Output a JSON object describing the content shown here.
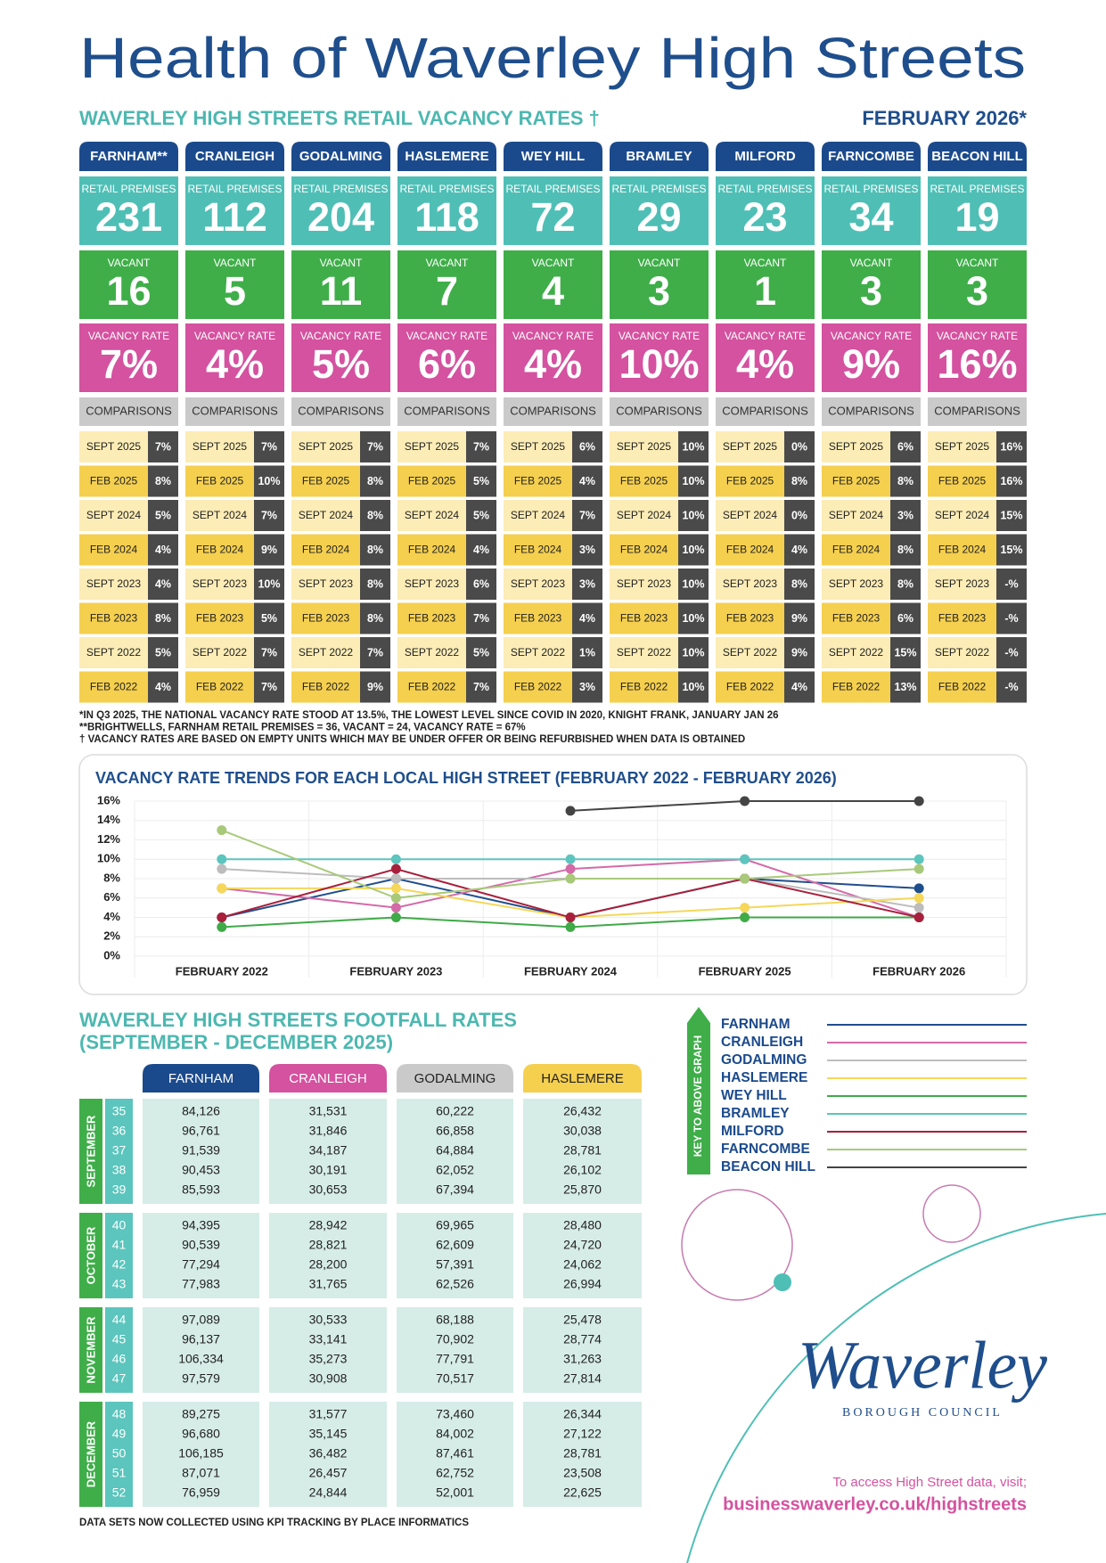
{
  "header": {
    "title": "Health of Waverley High Streets",
    "subtitle": "WAVERLEY HIGH STREETS RETAIL VACANCY RATES †",
    "date": "FEBRUARY 2026*"
  },
  "vacancy": {
    "labels": {
      "retail_premises": "RETAIL PREMISES",
      "vacant": "VACANT",
      "vacancy_rate": "VACANCY RATE",
      "comparisons": "COMPARISONS"
    },
    "periods": [
      "SEPT 2025",
      "FEB 2025",
      "SEPT 2024",
      "FEB 2024",
      "SEPT 2023",
      "FEB 2023",
      "SEPT 2022",
      "FEB 2022"
    ],
    "towns": [
      {
        "name": "FARNHAM**",
        "retail_premises": 231,
        "vacant": 16,
        "vacancy_rate": "7%",
        "comparisons": [
          "7%",
          "8%",
          "5%",
          "4%",
          "4%",
          "8%",
          "5%",
          "4%"
        ]
      },
      {
        "name": "CRANLEIGH",
        "retail_premises": 112,
        "vacant": 5,
        "vacancy_rate": "4%",
        "comparisons": [
          "7%",
          "10%",
          "7%",
          "9%",
          "10%",
          "5%",
          "7%",
          "7%"
        ]
      },
      {
        "name": "GODALMING",
        "retail_premises": 204,
        "vacant": 11,
        "vacancy_rate": "5%",
        "comparisons": [
          "7%",
          "8%",
          "8%",
          "8%",
          "8%",
          "8%",
          "7%",
          "9%"
        ]
      },
      {
        "name": "HASLEMERE",
        "retail_premises": 118,
        "vacant": 7,
        "vacancy_rate": "6%",
        "comparisons": [
          "7%",
          "5%",
          "5%",
          "4%",
          "6%",
          "7%",
          "5%",
          "7%"
        ]
      },
      {
        "name": "WEY HILL",
        "retail_premises": 72,
        "vacant": 4,
        "vacancy_rate": "4%",
        "comparisons": [
          "6%",
          "4%",
          "7%",
          "3%",
          "3%",
          "4%",
          "1%",
          "3%"
        ]
      },
      {
        "name": "BRAMLEY",
        "retail_premises": 29,
        "vacant": 3,
        "vacancy_rate": "10%",
        "comparisons": [
          "10%",
          "10%",
          "10%",
          "10%",
          "10%",
          "10%",
          "10%",
          "10%"
        ]
      },
      {
        "name": "MILFORD",
        "retail_premises": 23,
        "vacant": 1,
        "vacancy_rate": "4%",
        "comparisons": [
          "0%",
          "8%",
          "0%",
          "4%",
          "8%",
          "9%",
          "9%",
          "4%"
        ]
      },
      {
        "name": "FARNCOMBE",
        "retail_premises": 34,
        "vacant": 3,
        "vacancy_rate": "9%",
        "comparisons": [
          "6%",
          "8%",
          "3%",
          "8%",
          "8%",
          "6%",
          "15%",
          "13%"
        ]
      },
      {
        "name": "BEACON HILL",
        "retail_premises": 19,
        "vacant": 3,
        "vacancy_rate": "16%",
        "comparisons": [
          "16%",
          "16%",
          "15%",
          "15%",
          "-%",
          "-%",
          "-%",
          "-%"
        ]
      }
    ],
    "footnotes": [
      "*IN Q3 2025, THE NATIONAL VACANCY RATE STOOD AT 13.5%, THE LOWEST LEVEL SINCE COVID IN 2020, KNIGHT FRANK, JANUARY JAN 26",
      "**BRIGHTWELLS, FARNHAM RETAIL PREMISES = 36, VACANT = 24, VACANCY RATE  = 67%",
      "† VACANCY RATES ARE BASED ON EMPTY UNITS WHICH MAY BE UNDER OFFER OR BEING REFURBISHED WHEN DATA IS OBTAINED"
    ]
  },
  "chart_data": {
    "type": "line",
    "title": "VACANCY RATE TRENDS FOR EACH LOCAL HIGH STREET (FEBRUARY 2022 - FEBRUARY 2026)",
    "categories": [
      "FEBRUARY 2022",
      "FEBRUARY 2023",
      "FEBRUARY 2024",
      "FEBRUARY 2025",
      "FEBRUARY 2026"
    ],
    "ylim": [
      0,
      16
    ],
    "yticks": [
      {
        "value": 0,
        "label": "0%"
      },
      {
        "value": 2,
        "label": "2%"
      },
      {
        "value": 4,
        "label": "4%"
      },
      {
        "value": 6,
        "label": "6%"
      },
      {
        "value": 8,
        "label": "8%"
      },
      {
        "value": 10,
        "label": "10%"
      },
      {
        "value": 12,
        "label": "12%"
      },
      {
        "value": 14,
        "label": "14%"
      },
      {
        "value": 16,
        "label": "16%"
      }
    ],
    "grid": true,
    "legend_title": "KEY TO ABOVE GRAPH",
    "series": [
      {
        "name": "FARNHAM",
        "color": "#1f4e8c",
        "values": [
          4,
          8,
          4,
          8,
          7
        ]
      },
      {
        "name": "CRANLEIGH",
        "color": "#d46aa8",
        "values": [
          7,
          5,
          9,
          10,
          4
        ]
      },
      {
        "name": "GODALMING",
        "color": "#bdbdbd",
        "values": [
          9,
          8,
          8,
          8,
          5
        ]
      },
      {
        "name": "HASLEMERE",
        "color": "#f5d75a",
        "values": [
          7,
          7,
          4,
          5,
          6
        ]
      },
      {
        "name": "WEY HILL",
        "color": "#3faa48",
        "values": [
          3,
          4,
          3,
          4,
          4
        ]
      },
      {
        "name": "BRAMLEY",
        "color": "#5cc5bd",
        "values": [
          10,
          10,
          10,
          10,
          10
        ]
      },
      {
        "name": "MILFORD",
        "color": "#a8203c",
        "values": [
          4,
          9,
          4,
          8,
          4
        ]
      },
      {
        "name": "FARNCOMBE",
        "color": "#a8c97a",
        "values": [
          13,
          6,
          8,
          8,
          9
        ]
      },
      {
        "name": "BEACON HILL",
        "color": "#444444",
        "values": [
          null,
          null,
          15,
          16,
          16
        ]
      }
    ]
  },
  "footfall": {
    "title": "WAVERLEY HIGH STREETS FOOTFALL RATES",
    "subtitle": "(SEPTEMBER - DECEMBER 2025)",
    "columns": [
      "FARNHAM",
      "CRANLEIGH",
      "GODALMING",
      "HASLEMERE"
    ],
    "months": [
      {
        "name": "SEPTEMBER",
        "rows": [
          [
            "35",
            "84,126",
            "31,531",
            "60,222",
            "26,432"
          ],
          [
            "36",
            "96,761",
            "31,846",
            "66,858",
            "30,038"
          ],
          [
            "37",
            "91,539",
            "34,187",
            "64,884",
            "28,781"
          ],
          [
            "38",
            "90,453",
            "30,191",
            "62,052",
            "26,102"
          ],
          [
            "39",
            "85,593",
            "30,653",
            "67,394",
            "25,870"
          ]
        ]
      },
      {
        "name": "OCTOBER",
        "rows": [
          [
            "40",
            "94,395",
            "28,942",
            "69,965",
            "28,480"
          ],
          [
            "41",
            "90,539",
            "28,821",
            "62,609",
            "24,720"
          ],
          [
            "42",
            "77,294",
            "28,200",
            "57,391",
            "24,062"
          ],
          [
            "43",
            "77,983",
            "31,765",
            "62,526",
            "26,994"
          ]
        ]
      },
      {
        "name": "NOVEMBER",
        "rows": [
          [
            "44",
            "97,089",
            "30,533",
            "68,188",
            "25,478"
          ],
          [
            "45",
            "96,137",
            "33,141",
            "70,902",
            "28,774"
          ],
          [
            "46",
            "106,334",
            "35,273",
            "77,791",
            "31,263"
          ],
          [
            "47",
            "97,579",
            "30,908",
            "70,517",
            "27,814"
          ]
        ]
      },
      {
        "name": "DECEMBER",
        "rows": [
          [
            "48",
            "89,275",
            "31,577",
            "73,460",
            "26,344"
          ],
          [
            "49",
            "96,680",
            "35,145",
            "84,002",
            "27,122"
          ],
          [
            "50",
            "106,185",
            "36,482",
            "87,461",
            "28,781"
          ],
          [
            "51",
            "87,071",
            "26,457",
            "62,752",
            "23,508"
          ],
          [
            "52",
            "76,959",
            "24,844",
            "52,001",
            "22,625"
          ]
        ]
      }
    ],
    "note": "DATA SETS NOW COLLECTED USING KPI TRACKING BY PLACE INFORMATICS"
  },
  "logo": {
    "name": "Waverley",
    "org": "BOROUGH COUNCIL"
  },
  "access": {
    "prompt": "To access High Street data, visit;",
    "url": "businesswaverley.co.uk/highstreets"
  }
}
